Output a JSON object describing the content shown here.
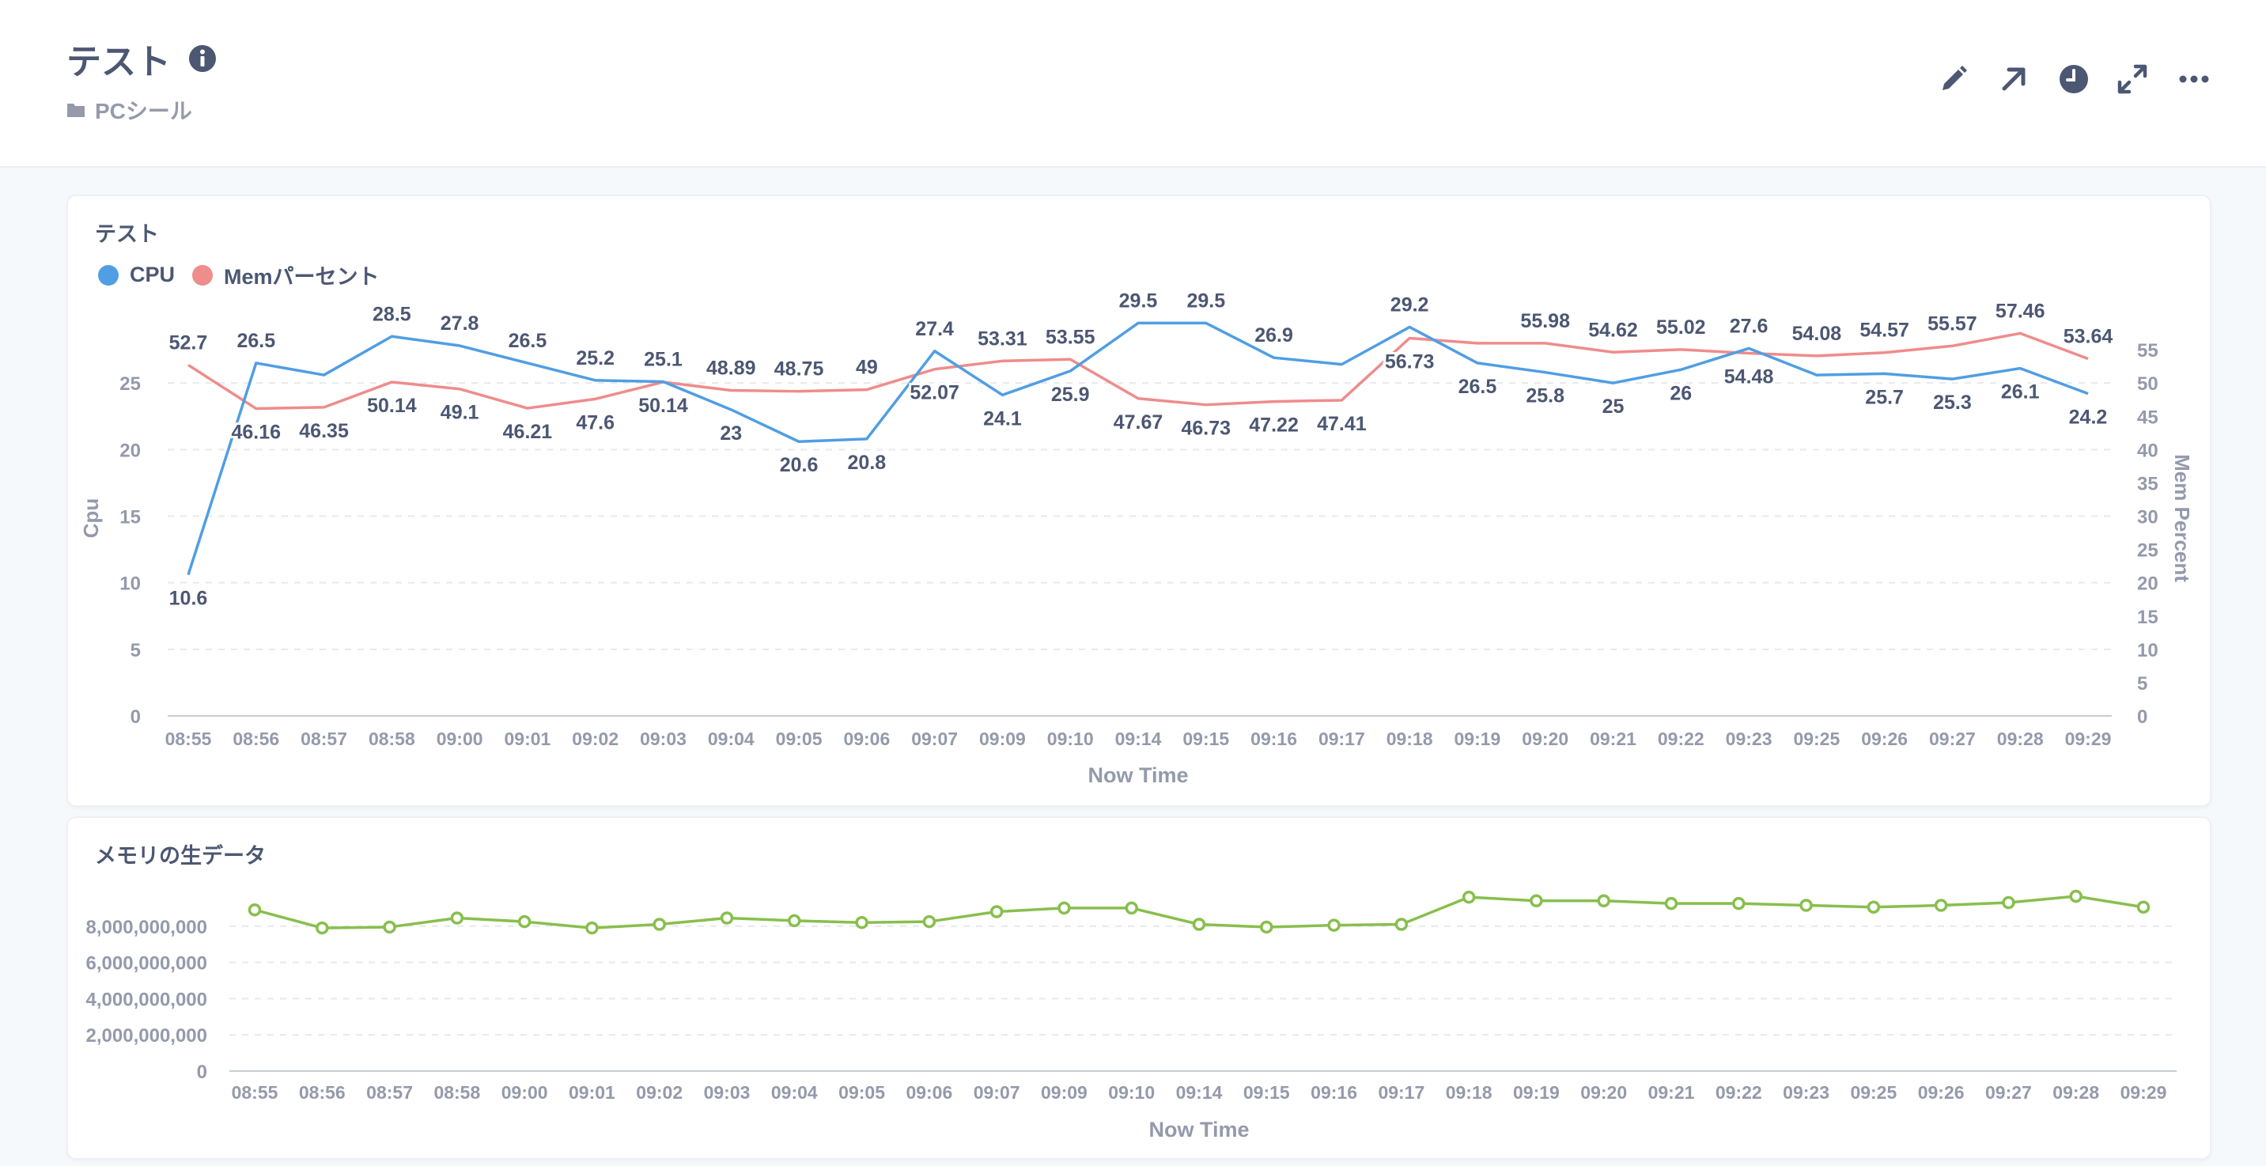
{
  "header": {
    "title": "テスト",
    "collection": "PCシール",
    "icons": [
      "info-icon",
      "pencil-icon",
      "share-icon",
      "clock-icon",
      "fullscreen-icon",
      "more-icon"
    ]
  },
  "colors": {
    "cpu": "#509ee3",
    "mem": "#ef8c8c",
    "raw": "#88bf4d",
    "text": "#4c5773",
    "muted": "#949aab"
  },
  "card1": {
    "title": "テスト",
    "legend": [
      {
        "label": "CPU",
        "color": "#509ee3"
      },
      {
        "label": "Memパーセント",
        "color": "#ef8c8c"
      }
    ]
  },
  "card2": {
    "title": "メモリの生データ"
  },
  "chart_data": [
    {
      "type": "line",
      "title": "テスト",
      "xlabel": "Now Time",
      "ylabel": "Cpu",
      "ylabel_right": "Mem Percent",
      "categories": [
        "08:55",
        "08:56",
        "08:57",
        "08:58",
        "09:00",
        "09:01",
        "09:02",
        "09:03",
        "09:04",
        "09:05",
        "09:06",
        "09:07",
        "09:09",
        "09:10",
        "09:14",
        "09:15",
        "09:16",
        "09:17",
        "09:18",
        "09:19",
        "09:20",
        "09:21",
        "09:22",
        "09:23",
        "09:25",
        "09:26",
        "09:27",
        "09:28",
        "09:29"
      ],
      "ylim": [
        0,
        30
      ],
      "yticks": [
        0,
        5,
        10,
        15,
        20,
        25
      ],
      "ylim_right": [
        0,
        60
      ],
      "yticks_right": [
        0,
        5,
        10,
        15,
        20,
        25,
        30,
        35,
        40,
        45,
        50,
        55
      ],
      "series": [
        {
          "name": "CPU",
          "axis": "left",
          "color": "#509ee3",
          "values": [
            10.6,
            26.5,
            25.6,
            28.5,
            27.8,
            26.5,
            25.2,
            25.1,
            23,
            20.6,
            20.8,
            27.4,
            24.1,
            25.9,
            29.5,
            29.5,
            26.9,
            26.4,
            29.2,
            26.5,
            25.8,
            25,
            26,
            27.6,
            25.6,
            25.7,
            25.3,
            26.1,
            24.2
          ],
          "labels": [
            "10.6",
            "26.5",
            "",
            "28.5",
            "27.8",
            "26.5",
            "25.2",
            "25.1",
            "23",
            "20.6",
            "20.8",
            "27.4",
            "24.1",
            "25.9",
            "29.5",
            "29.5",
            "26.9",
            "",
            "29.2",
            "26.5",
            "25.8",
            "25",
            "26",
            "27.6",
            "",
            "25.7",
            "25.3",
            "26.1",
            "24.2"
          ]
        },
        {
          "name": "Memパーセント",
          "axis": "right",
          "color": "#ef8c8c",
          "values": [
            52.7,
            46.16,
            46.35,
            50.14,
            49.1,
            46.21,
            47.6,
            50.14,
            48.89,
            48.75,
            49,
            52.07,
            53.31,
            53.55,
            47.67,
            46.73,
            47.22,
            47.41,
            56.73,
            55.98,
            55.98,
            54.62,
            55.02,
            54.48,
            54.08,
            54.57,
            55.57,
            57.46,
            53.64
          ],
          "labels": [
            "52.7",
            "46.16",
            "46.35",
            "50.14",
            "49.1",
            "46.21",
            "47.6",
            "50.14",
            "48.89",
            "48.75",
            "49",
            "52.07",
            "53.31",
            "53.55",
            "47.67",
            "46.73",
            "47.22",
            "47.41",
            "56.73",
            "",
            "55.98",
            "54.62",
            "55.02",
            "54.48",
            "54.08",
            "54.57",
            "55.57",
            "57.46",
            "53.64"
          ]
        }
      ]
    },
    {
      "type": "line",
      "title": "メモリの生データ",
      "xlabel": "Now Time",
      "categories": [
        "08:55",
        "08:56",
        "08:57",
        "08:58",
        "09:00",
        "09:01",
        "09:02",
        "09:03",
        "09:04",
        "09:05",
        "09:06",
        "09:07",
        "09:09",
        "09:10",
        "09:14",
        "09:15",
        "09:16",
        "09:17",
        "09:18",
        "09:19",
        "09:20",
        "09:21",
        "09:22",
        "09:23",
        "09:25",
        "09:26",
        "09:27",
        "09:28",
        "09:29"
      ],
      "ylim": [
        0,
        10000000000
      ],
      "yticks": [
        0,
        2000000000,
        4000000000,
        6000000000,
        8000000000
      ],
      "ytick_labels": [
        "0",
        "2,000,000,000",
        "4,000,000,000",
        "6,000,000,000",
        "8,000,000,000"
      ],
      "series": [
        {
          "name": "メモリの生データ",
          "color": "#88bf4d",
          "values": [
            8900000000,
            7900000000,
            7950000000,
            8450000000,
            8250000000,
            7900000000,
            8100000000,
            8450000000,
            8300000000,
            8200000000,
            8250000000,
            8800000000,
            9000000000,
            9000000000,
            8100000000,
            7950000000,
            8050000000,
            8100000000,
            9600000000,
            9400000000,
            9400000000,
            9250000000,
            9250000000,
            9150000000,
            9050000000,
            9150000000,
            9300000000,
            9650000000,
            9050000000
          ]
        }
      ]
    }
  ]
}
